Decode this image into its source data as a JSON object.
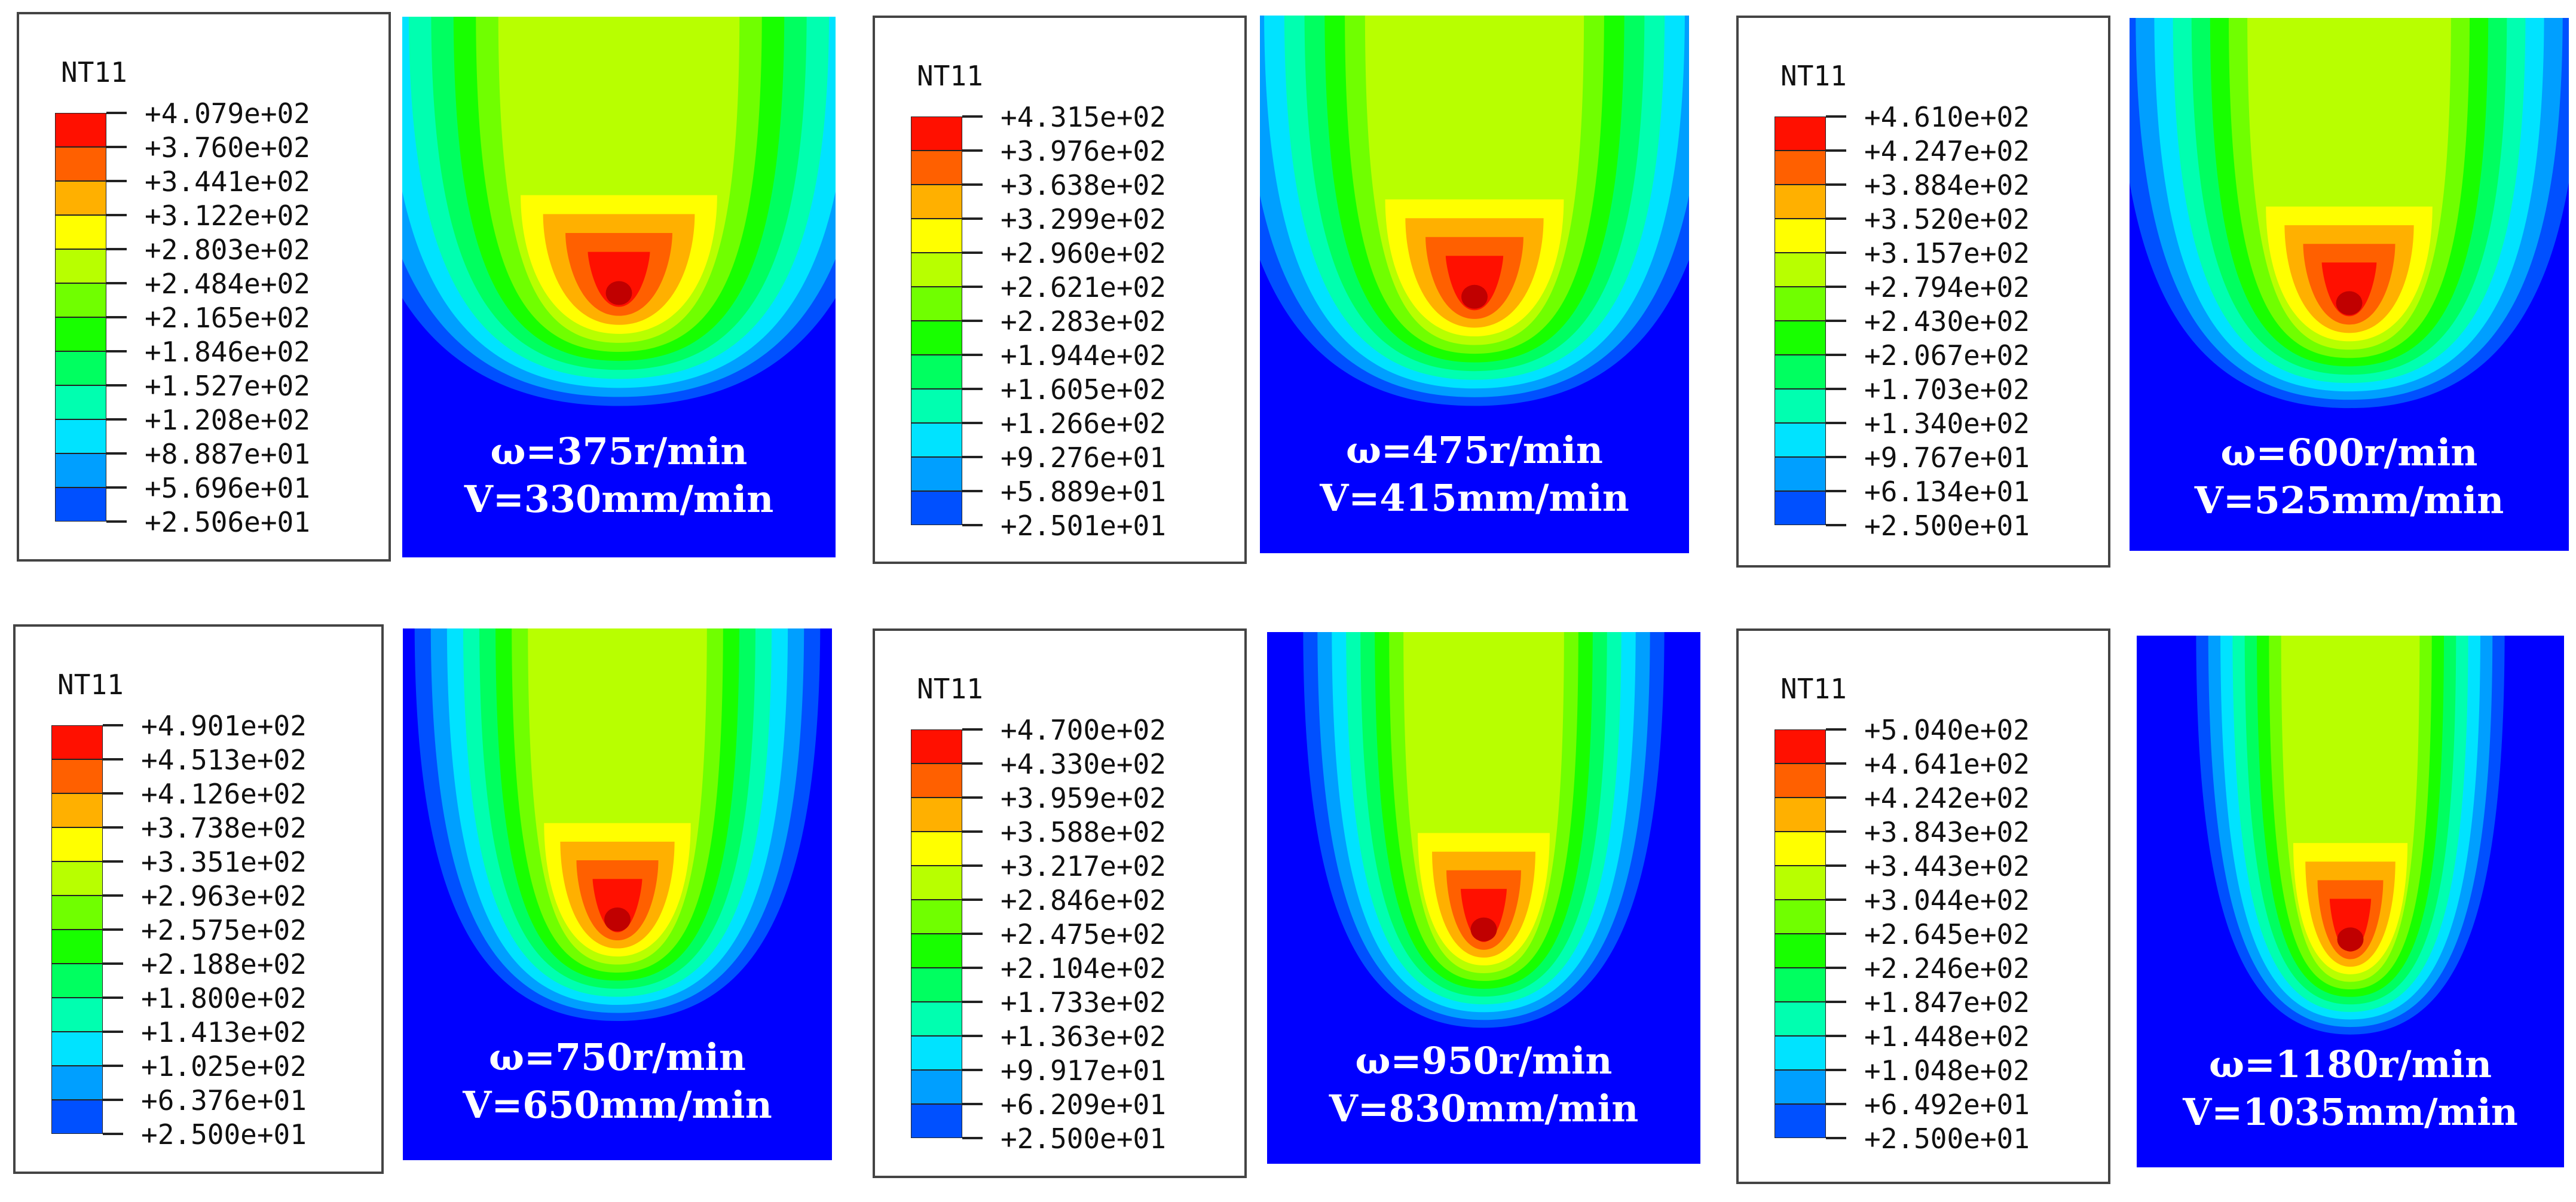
{
  "colormap": [
    "#0000ff",
    "#0050ff",
    "#009fff",
    "#00e3ff",
    "#00ffb0",
    "#00ff60",
    "#18ff00",
    "#70ff00",
    "#b8ff00",
    "#ffff00",
    "#ffb000",
    "#ff6000",
    "#ff1000"
  ],
  "panels": [
    {
      "title": "NT11",
      "labels": [
        "+4.079e+02",
        "+3.760e+02",
        "+3.441e+02",
        "+3.122e+02",
        "+2.803e+02",
        "+2.484e+02",
        "+2.165e+02",
        "+1.846e+02",
        "+1.527e+02",
        "+1.208e+02",
        "+8.887e+01",
        "+5.696e+01",
        "+2.506e+01"
      ],
      "omega": "ω=375r/min",
      "velocity": "V=330mm/min"
    },
    {
      "title": "NT11",
      "labels": [
        "+4.315e+02",
        "+3.976e+02",
        "+3.638e+02",
        "+3.299e+02",
        "+2.960e+02",
        "+2.621e+02",
        "+2.283e+02",
        "+1.944e+02",
        "+1.605e+02",
        "+1.266e+02",
        "+9.276e+01",
        "+5.889e+01",
        "+2.501e+01"
      ],
      "omega": "ω=475r/min",
      "velocity": "V=415mm/min"
    },
    {
      "title": "NT11",
      "labels": [
        "+4.610e+02",
        "+4.247e+02",
        "+3.884e+02",
        "+3.520e+02",
        "+3.157e+02",
        "+2.794e+02",
        "+2.430e+02",
        "+2.067e+02",
        "+1.703e+02",
        "+1.340e+02",
        "+9.767e+01",
        "+6.134e+01",
        "+2.500e+01"
      ],
      "omega": "ω=600r/min",
      "velocity": "V=525mm/min"
    },
    {
      "title": "NT11",
      "labels": [
        "+4.901e+02",
        "+4.513e+02",
        "+4.126e+02",
        "+3.738e+02",
        "+3.351e+02",
        "+2.963e+02",
        "+2.575e+02",
        "+2.188e+02",
        "+1.800e+02",
        "+1.413e+02",
        "+1.025e+02",
        "+6.376e+01",
        "+2.500e+01"
      ],
      "omega": "ω=750r/min",
      "velocity": "V=650mm/min"
    },
    {
      "title": "NT11",
      "labels": [
        "+4.700e+02",
        "+4.330e+02",
        "+3.959e+02",
        "+3.588e+02",
        "+3.217e+02",
        "+2.846e+02",
        "+2.475e+02",
        "+2.104e+02",
        "+1.733e+02",
        "+1.363e+02",
        "+9.917e+01",
        "+6.209e+01",
        "+2.500e+01"
      ],
      "omega": "ω=950r/min",
      "velocity": "V=830mm/min"
    },
    {
      "title": "NT11",
      "labels": [
        "+5.040e+02",
        "+4.641e+02",
        "+4.242e+02",
        "+3.843e+02",
        "+3.443e+02",
        "+3.044e+02",
        "+2.645e+02",
        "+2.246e+02",
        "+1.847e+02",
        "+1.448e+02",
        "+1.048e+02",
        "+6.492e+01",
        "+2.500e+01"
      ],
      "omega": "ω=1180r/min",
      "velocity": "V=1035mm/min"
    }
  ]
}
